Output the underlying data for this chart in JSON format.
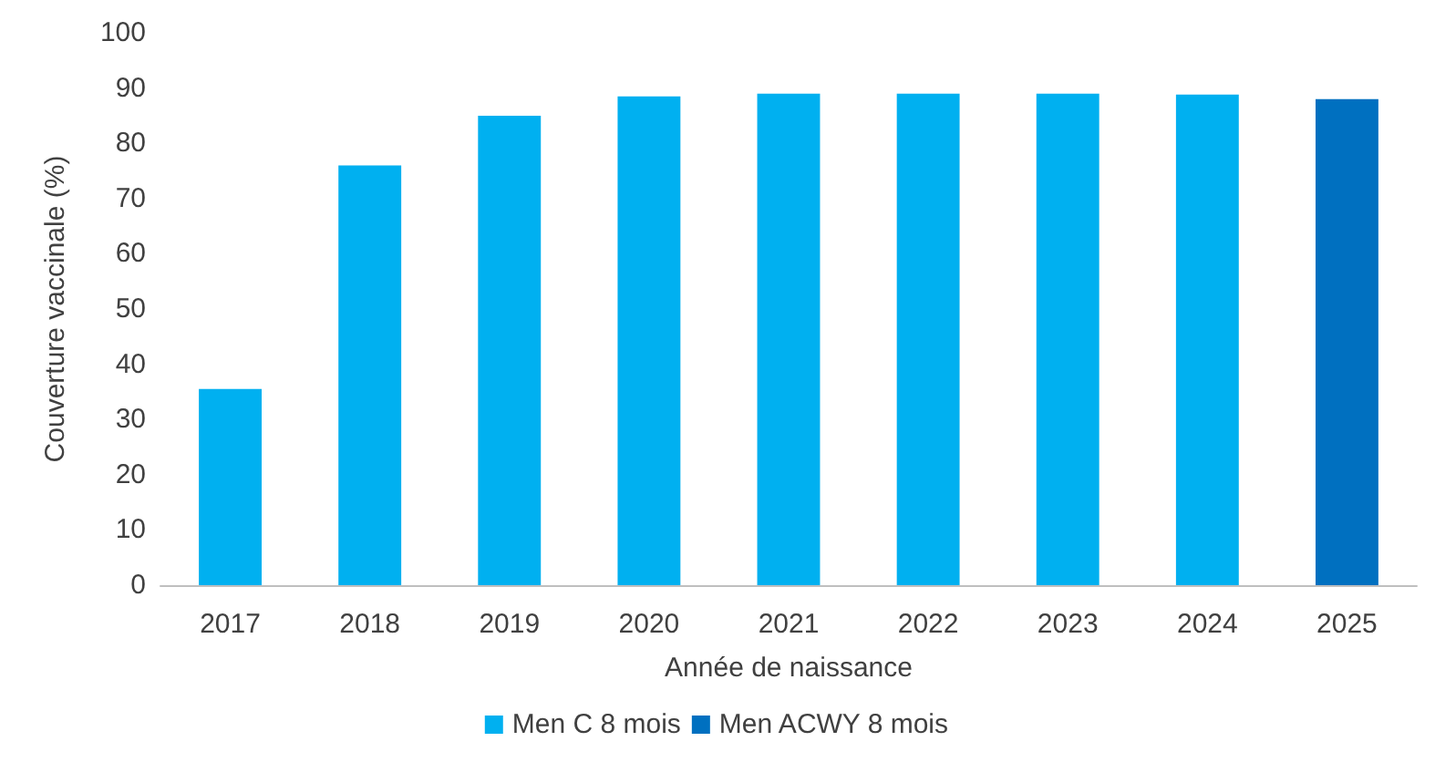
{
  "chart_data": {
    "type": "bar",
    "xlabel": "Année de naissance",
    "ylabel": "Couverture vaccinale (%)",
    "categories": [
      "2017",
      "2018",
      "2019",
      "2020",
      "2021",
      "2022",
      "2023",
      "2024",
      "2025"
    ],
    "series": [
      {
        "name": "Men C 8 mois",
        "color": "#00b0f0",
        "values": [
          35.5,
          76,
          85,
          88.5,
          89,
          89,
          89,
          88.8,
          null
        ]
      },
      {
        "name": "Men ACWY 8 mois",
        "color": "#0070c0",
        "values": [
          null,
          null,
          null,
          null,
          null,
          null,
          null,
          null,
          88
        ]
      }
    ],
    "stacked": true,
    "ylim": [
      0,
      100
    ],
    "yticks": [
      0,
      10,
      20,
      30,
      40,
      50,
      60,
      70,
      80,
      90,
      100
    ],
    "grid": false,
    "legend": "bottom"
  }
}
